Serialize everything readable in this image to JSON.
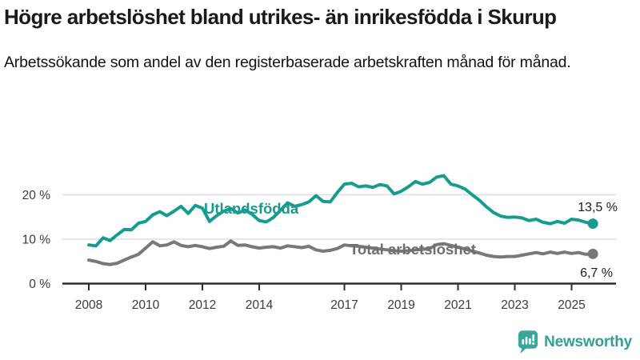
{
  "header": {
    "title": "Högre arbetslöshet bland utrikes- än inrikesfödda i Skurup",
    "subtitle": "Arbetssökande som andel av den registerbaserade arbetskraften månad för månad."
  },
  "chart_data": {
    "type": "line",
    "title": "Högre arbetslöshet bland utrikes- än inrikesfödda i Skurup",
    "subtitle": "Arbetssökande som andel av den registerbaserade arbetskraften månad för månad.",
    "unit": "%",
    "grid": "horizontal",
    "legend_position": "inline-labels",
    "x_start": 2008.0,
    "x_step": 0.25,
    "xlim": [
      2007.3,
      2026.5
    ],
    "ylim": [
      0,
      26
    ],
    "x_tick_years": [
      2008,
      2010,
      2012,
      2014,
      2017,
      2019,
      2021,
      2023,
      2025
    ],
    "x_tick_labels": [
      "2008",
      "2010",
      "2012",
      "2014",
      "2017",
      "2019",
      "2021",
      "2023",
      "2025"
    ],
    "y_ticks": [
      {
        "value": 0,
        "label": "0 %"
      },
      {
        "value": 10,
        "label": "10 %"
      },
      {
        "value": 20,
        "label": "20 %"
      }
    ],
    "series": [
      {
        "name": "Utlandsfödda",
        "color": "#169c8f",
        "final_value": 13.5,
        "final_label": "13,5 %",
        "values": [
          8.7,
          8.5,
          10.3,
          9.7,
          11.0,
          12.2,
          12.1,
          13.6,
          14.0,
          15.5,
          16.2,
          15.3,
          16.3,
          17.4,
          15.8,
          17.6,
          17.0,
          14.0,
          15.3,
          16.3,
          16.9,
          15.9,
          16.6,
          15.6,
          14.2,
          13.9,
          14.9,
          16.5,
          18.2,
          17.4,
          17.8,
          18.4,
          19.8,
          18.5,
          18.4,
          20.5,
          22.4,
          22.6,
          21.8,
          22.0,
          21.7,
          22.3,
          22.0,
          20.2,
          20.8,
          21.8,
          23.0,
          22.4,
          22.8,
          24.0,
          24.3,
          22.4,
          22.0,
          21.3,
          20.0,
          18.8,
          17.3,
          16.0,
          15.2,
          14.9,
          15.0,
          14.8,
          14.2,
          14.5,
          13.8,
          13.5,
          14.0,
          13.6,
          14.5,
          14.3,
          13.8,
          13.5
        ]
      },
      {
        "name": "Total arbetslöshet",
        "color": "#77777c",
        "final_value": 6.7,
        "final_label": "6,7 %",
        "values": [
          5.3,
          5.0,
          4.5,
          4.3,
          4.6,
          5.3,
          6.0,
          6.6,
          8.0,
          9.4,
          8.5,
          8.7,
          9.4,
          8.6,
          8.3,
          8.6,
          8.3,
          7.9,
          8.2,
          8.4,
          9.6,
          8.6,
          8.7,
          8.3,
          8.0,
          8.2,
          8.3,
          8.0,
          8.5,
          8.3,
          8.1,
          8.4,
          7.6,
          7.3,
          7.5,
          7.9,
          8.7,
          8.5,
          8.4,
          8.2,
          8.0,
          7.8,
          7.6,
          7.4,
          7.3,
          7.4,
          7.6,
          7.7,
          7.9,
          8.8,
          9.0,
          8.6,
          8.2,
          7.8,
          7.3,
          6.9,
          6.4,
          6.1,
          6.0,
          6.1,
          6.1,
          6.4,
          6.7,
          7.0,
          6.7,
          7.1,
          6.8,
          7.1,
          6.8,
          7.0,
          6.6,
          6.7
        ]
      }
    ],
    "colors": {
      "grid": "#dedede",
      "axis": "#2e2e2e",
      "tick_text": "#3a3a3a",
      "value_label_text": "#1a1a1a"
    }
  },
  "footer": {
    "brand": "Newsworthy",
    "brand_color": "#33a093"
  }
}
